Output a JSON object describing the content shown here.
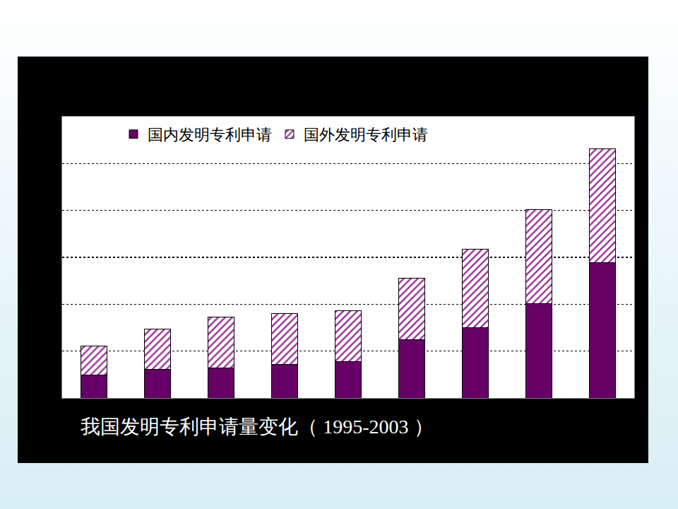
{
  "chart_data": {
    "type": "bar",
    "title": "我国发明专利申请量变化（ 1995-2003 ）",
    "categories": [
      null,
      null,
      null,
      null,
      null,
      null,
      null,
      null,
      null
    ],
    "series": [
      {
        "name": "国内发明专利申请",
        "color": "#660066",
        "values": [
          9700,
          12100,
          12700,
          14200,
          15500,
          24800,
          30000,
          40300,
          57600
        ]
      },
      {
        "name": "国外发明专利申请",
        "color": "#993399",
        "marker": "hatched",
        "values": [
          12400,
          17300,
          21800,
          21900,
          21800,
          26400,
          33600,
          40000,
          48800
        ]
      }
    ],
    "stacked": true,
    "ylim": [
      0,
      120000
    ],
    "yticks": [
      0,
      20000,
      40000,
      60000,
      80000,
      100000
    ],
    "grid": true,
    "legend": "top",
    "tick_labels": false
  }
}
